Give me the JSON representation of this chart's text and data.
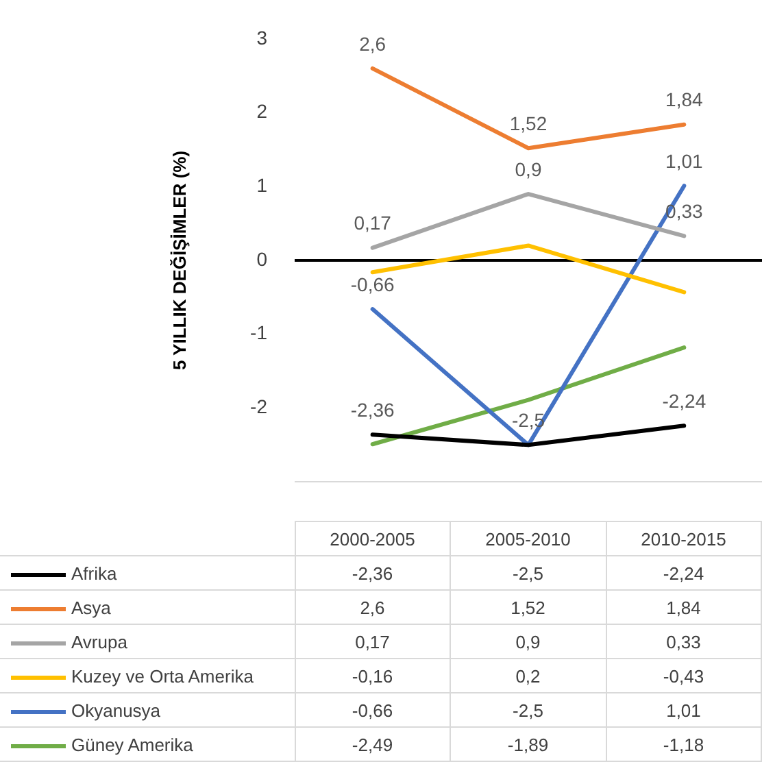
{
  "chart_data": {
    "type": "line",
    "ylabel": "5 YILLIK DEĞİŞİMLER (%)",
    "categories": [
      "2000-2005",
      "2005-2010",
      "2010-2015"
    ],
    "ylim": [
      -3,
      3
    ],
    "yticks": [
      -2,
      -1,
      0,
      1,
      2,
      3
    ],
    "grid": false,
    "legend": "bottom",
    "marker": "none",
    "line_style": "solid",
    "ref_lines": [
      {
        "axis": "y",
        "value": 0,
        "color": "#000000"
      }
    ],
    "series": [
      {
        "name": "Afrika",
        "color": "#000000",
        "values": [
          -2.36,
          -2.5,
          -2.24
        ],
        "value_labels": [
          "-2,36",
          "-2,5",
          "-2,24"
        ]
      },
      {
        "name": "Asya",
        "color": "#ed7d31",
        "values": [
          2.6,
          1.52,
          1.84
        ],
        "value_labels": [
          "2,6",
          "1,52",
          "1,84"
        ]
      },
      {
        "name": "Avrupa",
        "color": "#a5a5a5",
        "values": [
          0.17,
          0.9,
          0.33
        ],
        "value_labels": [
          "0,17",
          "0,9",
          "0,33"
        ]
      },
      {
        "name": "Kuzey ve Orta Amerika",
        "color": "#ffc000",
        "values": [
          -0.16,
          0.2,
          -0.43
        ],
        "value_labels": [
          "-0,16",
          "0,2",
          "-0,43"
        ]
      },
      {
        "name": "Okyanusya",
        "color": "#4472c4",
        "values": [
          -0.66,
          -2.5,
          1.01
        ],
        "value_labels": [
          "-0,66",
          "-2,5",
          "1,01"
        ]
      },
      {
        "name": "Güney Amerika",
        "color": "#70ad47",
        "values": [
          -2.49,
          -1.89,
          -1.18
        ],
        "value_labels": [
          "-2,49",
          "-1,89",
          "-1,18"
        ]
      }
    ],
    "annotations": [
      {
        "text": "2,6",
        "x": "2000-2005",
        "y": 2.6
      },
      {
        "text": "1,52",
        "x": "2005-2010",
        "y": 1.52
      },
      {
        "text": "1,84",
        "x": "2010-2015",
        "y": 1.84
      },
      {
        "text": "0,17",
        "x": "2000-2005",
        "y": 0.17
      },
      {
        "text": "0,9",
        "x": "2005-2010",
        "y": 0.9
      },
      {
        "text": "0,33",
        "x": "2010-2015",
        "y": 0.33
      },
      {
        "text": "1,01",
        "x": "2010-2015",
        "y": 1.01
      },
      {
        "text": "-0,66",
        "x": "2000-2005",
        "y": -0.66
      },
      {
        "text": "-2,36",
        "x": "2000-2005",
        "y": -2.36
      },
      {
        "text": "-2,5",
        "x": "2005-2010",
        "y": -2.5
      },
      {
        "text": "-2,24",
        "x": "2010-2015",
        "y": -2.24
      }
    ]
  }
}
